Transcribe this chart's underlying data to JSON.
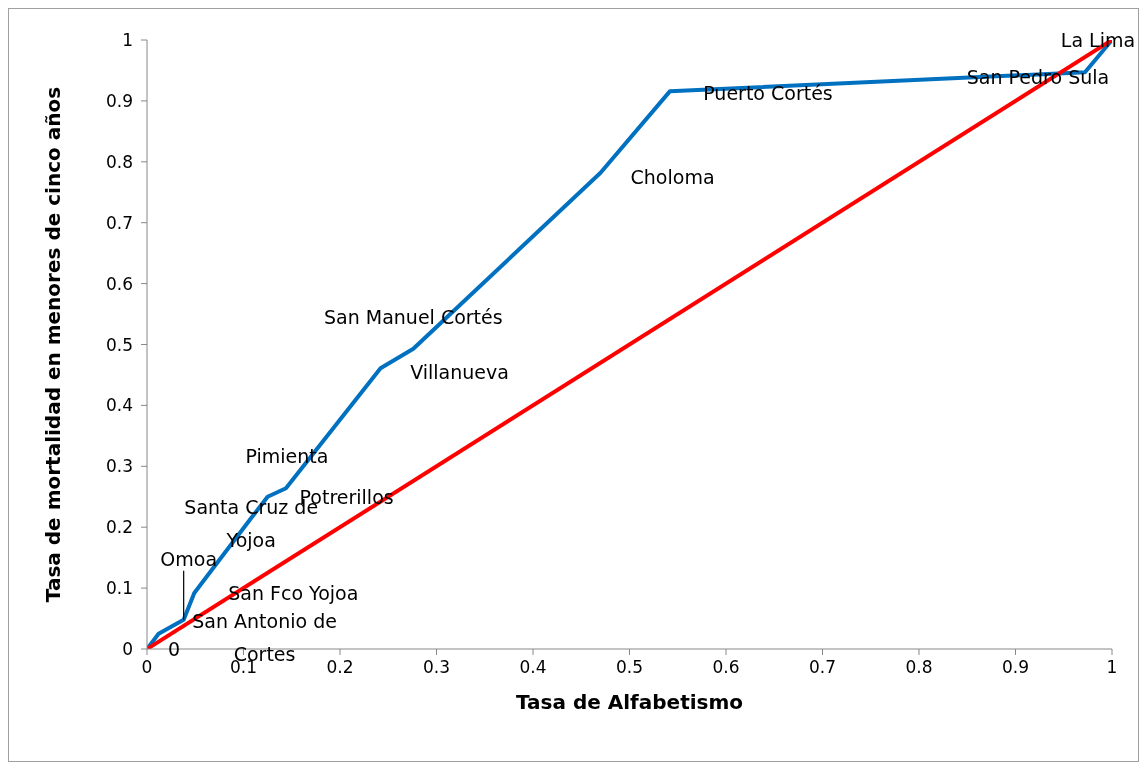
{
  "chart_data": {
    "type": "line",
    "xlabel": "Tasa de Alfabetismo",
    "ylabel": "Tasa de mortalidad en  menores de cinco años",
    "xlim": [
      0,
      1
    ],
    "ylim": [
      0,
      1
    ],
    "xticks": [
      0,
      0.1,
      0.2,
      0.3,
      0.4,
      0.5,
      0.6,
      0.7,
      0.8,
      0.9,
      1
    ],
    "yticks": [
      0,
      0.1,
      0.2,
      0.3,
      0.4,
      0.5,
      0.6,
      0.7,
      0.8,
      0.9,
      1
    ],
    "grid": false,
    "marker": "none",
    "line_style": "solid",
    "series": [
      {
        "color": "#0070c0",
        "x": [
          0,
          0.012,
          0.038,
          0.049,
          0.108,
          0.125,
          0.144,
          0.242,
          0.276,
          0.47,
          0.542,
          0.972,
          1
        ],
        "values": [
          0,
          0.025,
          0.048,
          0.092,
          0.215,
          0.25,
          0.264,
          0.461,
          0.493,
          0.782,
          0.916,
          0.947,
          1
        ]
      },
      {
        "color": "#ff0000",
        "x": [
          0,
          1
        ],
        "values": [
          0,
          1
        ]
      }
    ],
    "annotations": [
      {
        "text": "La Lima",
        "x": 1,
        "y": 1
      },
      {
        "text": "San Pedro Sula",
        "x": 0.972,
        "y": 0.947
      },
      {
        "text": "Puerto Cortés",
        "x": 0.542,
        "y": 0.916
      },
      {
        "text": "Choloma",
        "x": 0.47,
        "y": 0.782
      },
      {
        "text": "San Manuel Cortés",
        "x": 0.276,
        "y": 0.493
      },
      {
        "text": "Villanueva",
        "x": 0.242,
        "y": 0.461
      },
      {
        "text": "Pimienta",
        "x": 0.144,
        "y": 0.264
      },
      {
        "text": "Potrerillos",
        "x": 0.125,
        "y": 0.25
      },
      {
        "text": "Santa Cruz de Yojoa",
        "x": 0.108,
        "y": 0.215
      },
      {
        "text": "Omoa",
        "x": 0.038,
        "y": 0.048
      },
      {
        "text": "San Fco Yojoa",
        "x": 0.049,
        "y": 0.092
      },
      {
        "text": "San Antonio de Cortes",
        "x": 0.012,
        "y": 0.025
      },
      {
        "text": "0",
        "x": 0,
        "y": 0
      }
    ]
  }
}
